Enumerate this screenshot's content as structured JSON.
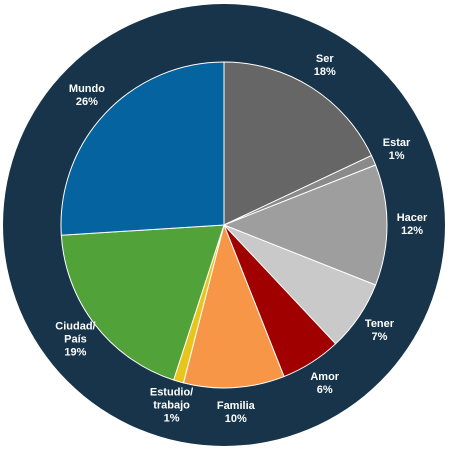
{
  "chart_data": {
    "type": "pie",
    "categories": [
      "Ser",
      "Estar",
      "Hacer",
      "Tener",
      "Amor",
      "Familia",
      "Estudio/\ntrabajo",
      "Ciudad/\nPaís",
      "Mundo"
    ],
    "values": [
      18,
      1,
      12,
      7,
      6,
      10,
      1,
      19,
      26
    ],
    "value_labels": [
      "18%",
      "1%",
      "12%",
      "7%",
      "6%",
      "10%",
      "1%",
      "19%",
      "26%"
    ],
    "colors": [
      "#666666",
      "#8a8a8a",
      "#9e9e9e",
      "#c9c9c9",
      "#a00000",
      "#f79646",
      "#e8c51a",
      "#52a23a",
      "#0563a0"
    ]
  }
}
